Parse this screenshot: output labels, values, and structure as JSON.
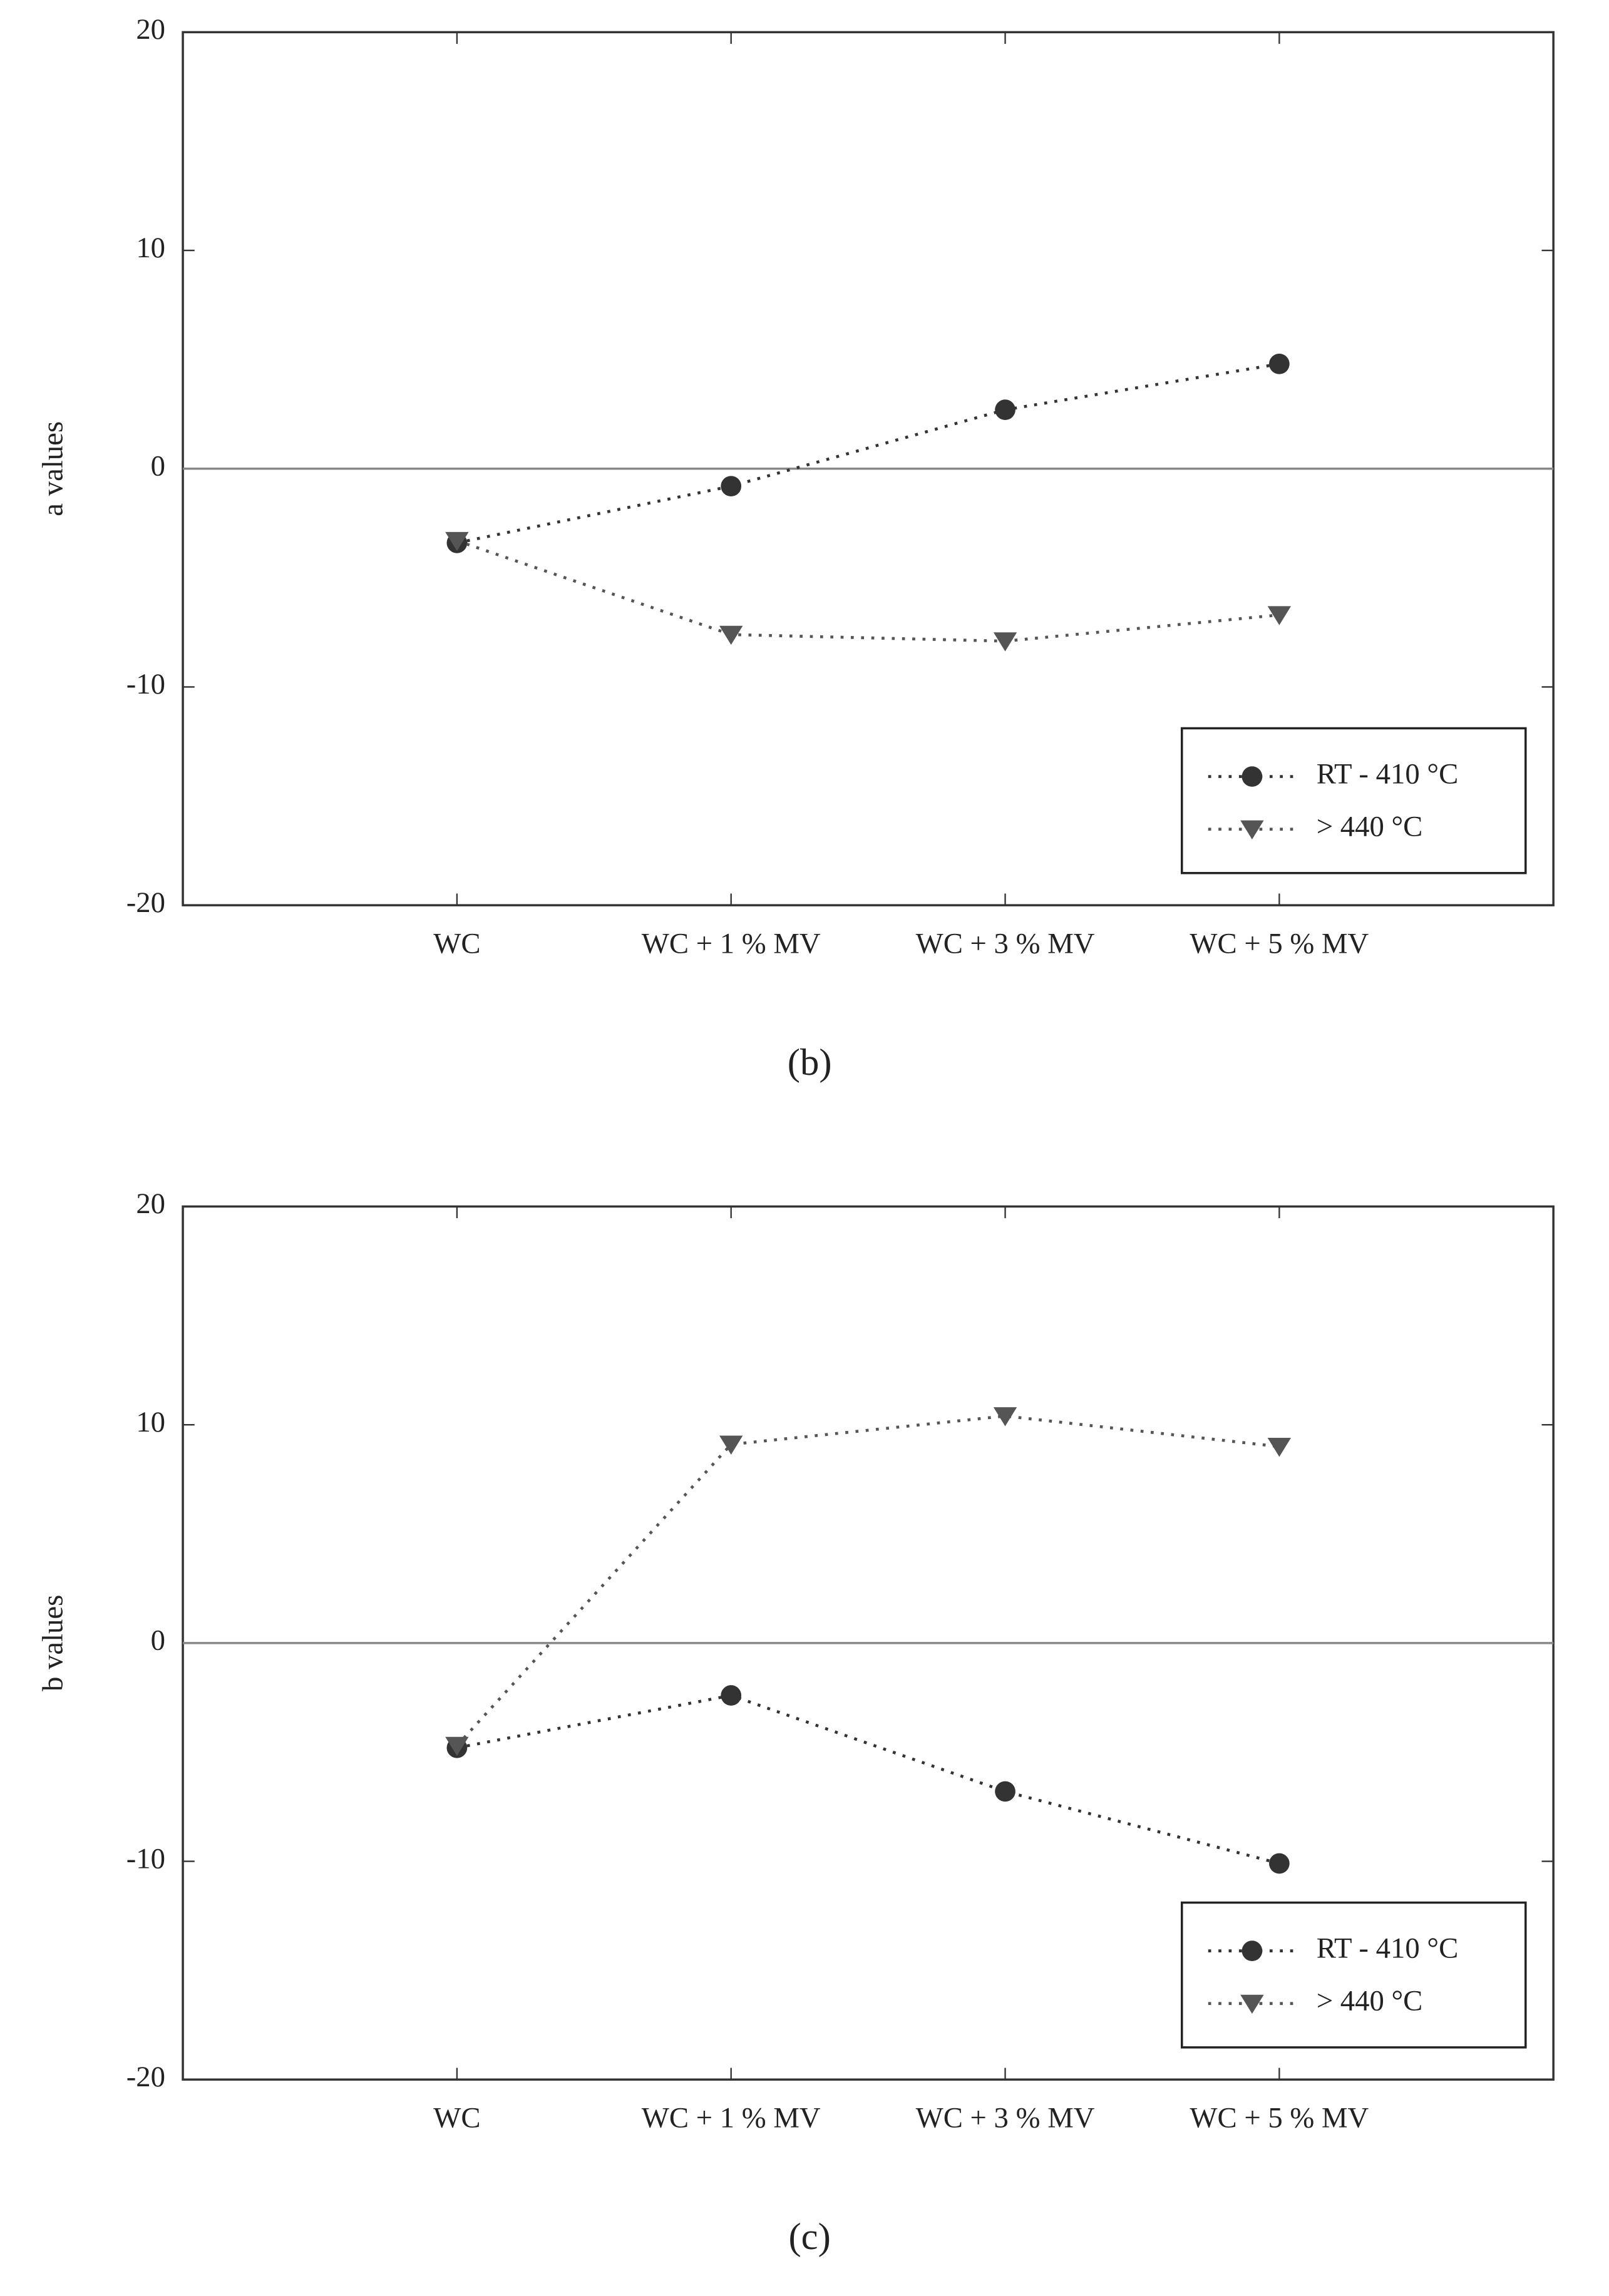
{
  "chart_data": [
    {
      "type": "line",
      "caption": "(b)",
      "ylabel": "a values",
      "categories": [
        "WC",
        "WC + 1 % MV",
        "WC + 3 % MV",
        "WC + 5 % MV"
      ],
      "ylim": [
        -20,
        20
      ],
      "yticks": [
        -20,
        -10,
        0,
        10,
        20
      ],
      "zero_line": true,
      "legend": "lower right",
      "series": [
        {
          "name": "RT - 410 °C",
          "color": "#333333",
          "marker": "circle",
          "values": [
            -3.4,
            -0.8,
            2.7,
            4.8
          ]
        },
        {
          "name": "> 440 °C",
          "color": "#555555",
          "marker": "triangle-down",
          "values": [
            -3.3,
            -7.6,
            -7.9,
            -6.7
          ]
        }
      ]
    },
    {
      "type": "line",
      "caption": "(c)",
      "ylabel": "b values",
      "categories": [
        "WC",
        "WC + 1 % MV",
        "WC + 3 % MV",
        "WC + 5 % MV"
      ],
      "ylim": [
        -20,
        20
      ],
      "yticks": [
        -20,
        -10,
        0,
        10,
        20
      ],
      "zero_line": true,
      "legend": "lower right",
      "series": [
        {
          "name": "RT - 410 °C",
          "color": "#333333",
          "marker": "circle",
          "values": [
            -4.8,
            -2.4,
            -6.8,
            -10.1
          ]
        },
        {
          "name": "> 440 °C",
          "color": "#555555",
          "marker": "triangle-down",
          "values": [
            -4.7,
            9.1,
            10.4,
            9.0
          ]
        }
      ]
    }
  ]
}
